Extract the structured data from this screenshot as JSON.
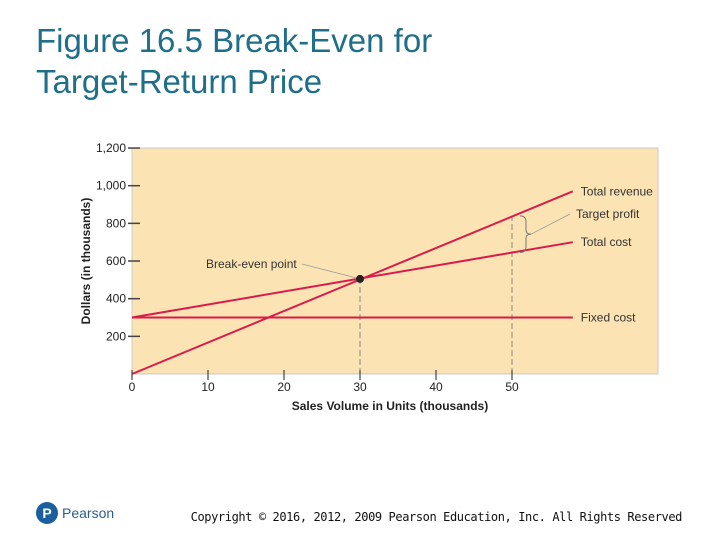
{
  "slide": {
    "title": "Figure 16.5 Break-Even for\nTarget-Return Price",
    "copyright": "Copyright © 2016, 2012, 2009 Pearson Education, Inc. All Rights Reserved",
    "logo_text": "Pearson",
    "logo_icon": "pearson-p-icon"
  },
  "chart_data": {
    "type": "line",
    "xlabel": "Sales Volume in Units (thousands)",
    "ylabel": "Dollars (in thousands)",
    "xlim": [
      0,
      70
    ],
    "ylim": [
      0,
      1200
    ],
    "x_ticks": [
      0,
      10,
      20,
      30,
      40,
      50
    ],
    "x_tick_labels": [
      "0",
      "10",
      "20",
      "30",
      "40",
      "50"
    ],
    "y_ticks": [
      200,
      400,
      600,
      800,
      1000,
      1200
    ],
    "y_tick_labels": [
      "200",
      "400",
      "600",
      "800",
      "1,000",
      "1,200"
    ],
    "series": [
      {
        "name": "Total revenue",
        "x": [
          0,
          58
        ],
        "y": [
          0,
          970
        ],
        "color": "#d81b4a"
      },
      {
        "name": "Total cost",
        "x": [
          0,
          58
        ],
        "y": [
          300,
          700
        ],
        "color": "#d81b4a"
      },
      {
        "name": "Fixed cost",
        "x": [
          0,
          58
        ],
        "y": [
          300,
          300
        ],
        "color": "#d81b4a"
      }
    ],
    "annotations": [
      {
        "text": "Break-even point",
        "x": 30,
        "y": 505
      },
      {
        "text": "Target profit",
        "x": 50,
        "y_from": 645,
        "y_to": 840
      }
    ],
    "reference_lines": [
      {
        "x": 30,
        "y_to": 505
      },
      {
        "x": 50,
        "y_to": 840
      }
    ],
    "plot_background": "#fbe3b3",
    "grid": false
  }
}
